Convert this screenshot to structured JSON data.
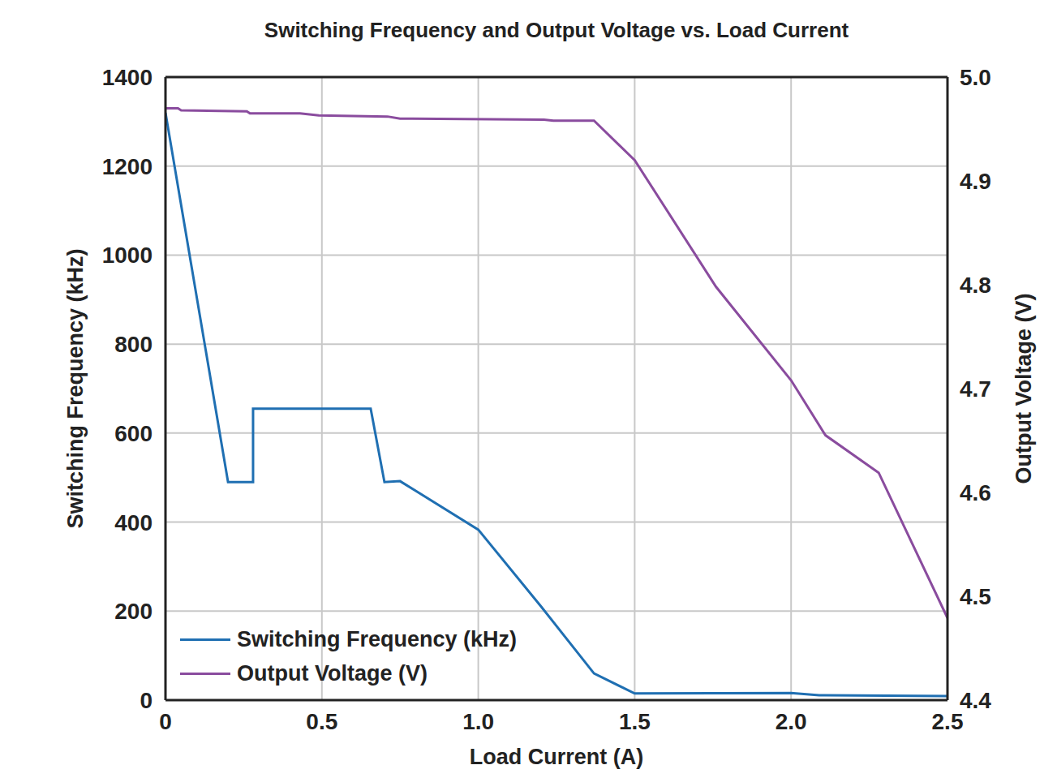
{
  "chart_data": {
    "type": "line",
    "title": "Switching Frequency and Output Voltage vs. Load Current",
    "x_label": "Load Current (A)",
    "y_label": "Switching Frequency (kHz)",
    "y2_label": "Output Voltage (V)",
    "xlim": [
      0,
      2.5
    ],
    "xticks": [
      0,
      0.5,
      {
        "value": 1,
        "label": "1.0"
      },
      1.5,
      {
        "value": 2,
        "label": "2.0"
      },
      2.5
    ],
    "ylim": [
      0,
      1400
    ],
    "yticks": [
      0,
      200,
      400,
      600,
      800,
      1000,
      1200,
      1400
    ],
    "y2lim": [
      4.4,
      5
    ],
    "y2ticks": [
      4.4,
      4.5,
      4.6,
      4.7,
      4.8,
      4.9,
      {
        "value": 5,
        "label": "5.0"
      }
    ],
    "grid": true,
    "legend": "lower left",
    "series": [
      {
        "name": "Switching Frequency (kHz)",
        "color": "#1f6fb2",
        "x": [
          0,
          0.2,
          0.28,
          0.28,
          0.656,
          0.7,
          0.75,
          1.0,
          1.2,
          1.37,
          1.5,
          2.0,
          2.09,
          2.5
        ],
        "values": [
          1320,
          490,
          490,
          655,
          655,
          490,
          492,
          383,
          211,
          60,
          15,
          16,
          11,
          9
        ]
      },
      {
        "name": "Output Voltage (V)",
        "color": "#8a4c9e",
        "axis": "y2",
        "x": [
          0,
          0.04,
          0.05,
          0.26,
          0.27,
          0.43,
          0.49,
          0.71,
          0.75,
          1.21,
          1.24,
          1.37,
          1.5,
          1.76,
          2.0,
          2.11,
          2.28,
          2.5
        ],
        "values": [
          4.97,
          4.97,
          4.968,
          4.967,
          4.965,
          4.965,
          4.963,
          4.962,
          4.96,
          4.959,
          4.958,
          4.958,
          4.92,
          4.798,
          4.708,
          4.655,
          4.619,
          4.479
        ]
      }
    ]
  }
}
